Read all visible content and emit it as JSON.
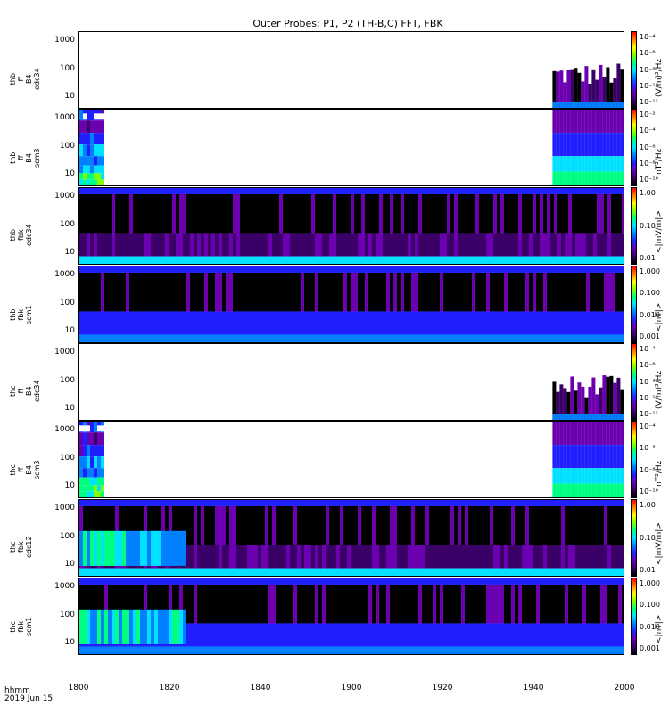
{
  "title": "Outer Probes: P1, P2 (TH-B,C) FFT, FBK",
  "x_axis": {
    "ticks": [
      "1800",
      "1820",
      "1840",
      "1900",
      "1920",
      "1940",
      "2000"
    ],
    "label_top": "hhmm",
    "label_bottom": "2019 Jun 15"
  },
  "colors": {
    "scale": [
      "#000000",
      "#3a0068",
      "#6a00b0",
      "#2020ff",
      "#0080ff",
      "#00e0ff",
      "#00ff80",
      "#80ff00",
      "#ffff00",
      "#ff8000",
      "#ff0000"
    ]
  },
  "panels": [
    {
      "id": "thb-ff-edc34",
      "ylabel": "thb\nff\nB4\nedc34",
      "yticks": [
        "1000",
        "100",
        "10"
      ],
      "cbar_ticks": [
        "10⁻⁴",
        "10⁻⁶",
        "10⁻⁸",
        "10⁻¹⁰",
        "10⁻¹²"
      ],
      "cbar_unit": "(V/m)²/Hz"
    },
    {
      "id": "thb-ff-scm3",
      "ylabel": "thb\nff\nB4\nscm3",
      "yticks": [
        "1000",
        "100",
        "10"
      ],
      "cbar_ticks": [
        "10⁻²",
        "10⁻⁴",
        "10⁻⁶",
        "10⁻⁸",
        "10⁻¹⁰"
      ],
      "cbar_unit": "nT²/Hz"
    },
    {
      "id": "thb-fbk-edc34",
      "ylabel": "thb\nfbk\nedc34",
      "yticks": [
        "1000",
        "100",
        "10"
      ],
      "cbar_ticks": [
        "1.00",
        "0.10",
        "0.01"
      ],
      "cbar_unit": "<|mV/m|>"
    },
    {
      "id": "thb-fbk-scm1",
      "ylabel": "thb\nfbk\nscm1",
      "yticks": [
        "1000",
        "100",
        "10"
      ],
      "cbar_ticks": [
        "1.000",
        "0.100",
        "0.010",
        "0.001"
      ],
      "cbar_unit": "<|nT|>"
    },
    {
      "id": "thc-ff-edc34",
      "ylabel": "thc\nff\nB4\nedc34",
      "yticks": [
        "1000",
        "100",
        "10"
      ],
      "cbar_ticks": [
        "10⁻⁴",
        "10⁻⁶",
        "10⁻⁸",
        "10⁻¹⁰",
        "10⁻¹²"
      ],
      "cbar_unit": "(V/m)²/Hz"
    },
    {
      "id": "thc-ff-scm3",
      "ylabel": "thc\nff\nB4\nscm3",
      "yticks": [
        "1000",
        "100",
        "10"
      ],
      "cbar_ticks": [
        "10⁻⁴",
        "10⁻⁶",
        "10⁻⁸",
        "10⁻¹⁰"
      ],
      "cbar_unit": "nT²/Hz"
    },
    {
      "id": "thc-fbk-edc12",
      "ylabel": "thc\nfbk\nedc12",
      "yticks": [
        "1000",
        "100",
        "10"
      ],
      "cbar_ticks": [
        "1.00",
        "0.10",
        "0.01"
      ],
      "cbar_unit": "<|mV/m|>"
    },
    {
      "id": "thc-fbk-scm1",
      "ylabel": "thc\nfbk\nscm1",
      "yticks": [
        "1000",
        "100",
        "10"
      ],
      "cbar_ticks": [
        "1.000",
        "0.100",
        "0.010",
        "0.001"
      ],
      "cbar_unit": "<|nT|>"
    }
  ],
  "chart_data": {
    "type": "heatmap",
    "title": "Outer Probes: P1, P2 (TH-B,C) FFT, FBK",
    "x_range": [
      "1800",
      "2000"
    ],
    "xlabel": "hhmm",
    "date": "2019 Jun 15",
    "y_scale": "log",
    "series": [
      {
        "name": "thb ff B4 edc34",
        "units": "(V/m)²/Hz",
        "data_intervals": [
          [
            "1800",
            "1800"
          ],
          [
            "1944",
            "2000"
          ]
        ]
      },
      {
        "name": "thb ff B4 scm3",
        "units": "nT²/Hz",
        "data_intervals": [
          [
            "1800",
            "1805"
          ],
          [
            "1944",
            "2000"
          ]
        ]
      },
      {
        "name": "thb fbk edc34",
        "units": "<|mV/m|>",
        "data_intervals": [
          [
            "1800",
            "2000"
          ]
        ]
      },
      {
        "name": "thb fbk scm1",
        "units": "<|nT|>",
        "data_intervals": [
          [
            "1800",
            "2000"
          ]
        ]
      },
      {
        "name": "thc ff B4 edc34",
        "units": "(V/m)²/Hz",
        "data_intervals": [
          [
            "1800",
            "1800"
          ],
          [
            "1944",
            "2000"
          ]
        ]
      },
      {
        "name": "thc ff B4 scm3",
        "units": "nT²/Hz",
        "data_intervals": [
          [
            "1800",
            "1805"
          ],
          [
            "1944",
            "2000"
          ]
        ]
      },
      {
        "name": "thc fbk edc12",
        "units": "<|mV/m|>",
        "data_intervals": [
          [
            "1800",
            "2000"
          ]
        ]
      },
      {
        "name": "thc fbk scm1",
        "units": "<|nT|>",
        "data_intervals": [
          [
            "1800",
            "2000"
          ]
        ]
      }
    ]
  }
}
